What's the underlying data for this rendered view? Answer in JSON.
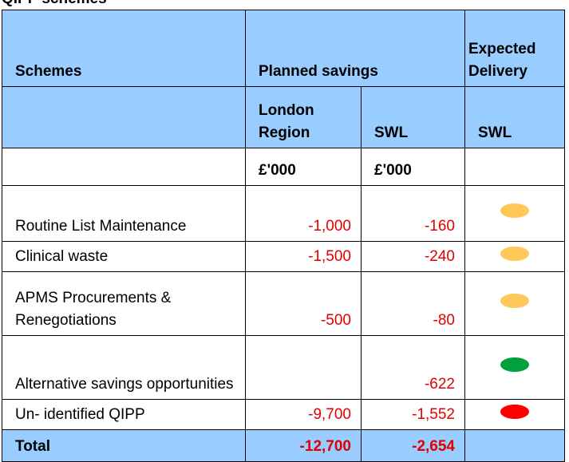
{
  "title": "QIPP schemes",
  "table": {
    "header": {
      "schemes": "Schemes",
      "planned": "Planned savings",
      "expected": "Expected Delivery",
      "london": "London Region",
      "swl": "SWL",
      "swl_delivery": "SWL",
      "unit_london": "£'000",
      "unit_swl": "£'000"
    },
    "rows": [
      {
        "scheme": "Routine List Maintenance",
        "london": "-1,000",
        "swl": "-160",
        "rating_color": "#ffc859"
      },
      {
        "scheme": "Clinical waste",
        "london": "-1,500",
        "swl": "-240",
        "rating_color": "#ffc859"
      },
      {
        "scheme": "APMS Procurements & Renegotiations",
        "london": "-500",
        "swl": "-80",
        "rating_color": "#ffc859"
      },
      {
        "scheme": "Alternative savings opportunities",
        "london": "",
        "swl": "-622",
        "rating_color": "#00a03c"
      },
      {
        "scheme": "Un- identified QIPP",
        "london": "-9,700",
        "swl": "-1,552",
        "rating_color": "#ff0000"
      }
    ],
    "total": {
      "label": "Total",
      "london": "-12,700",
      "swl": "-2,654"
    }
  }
}
